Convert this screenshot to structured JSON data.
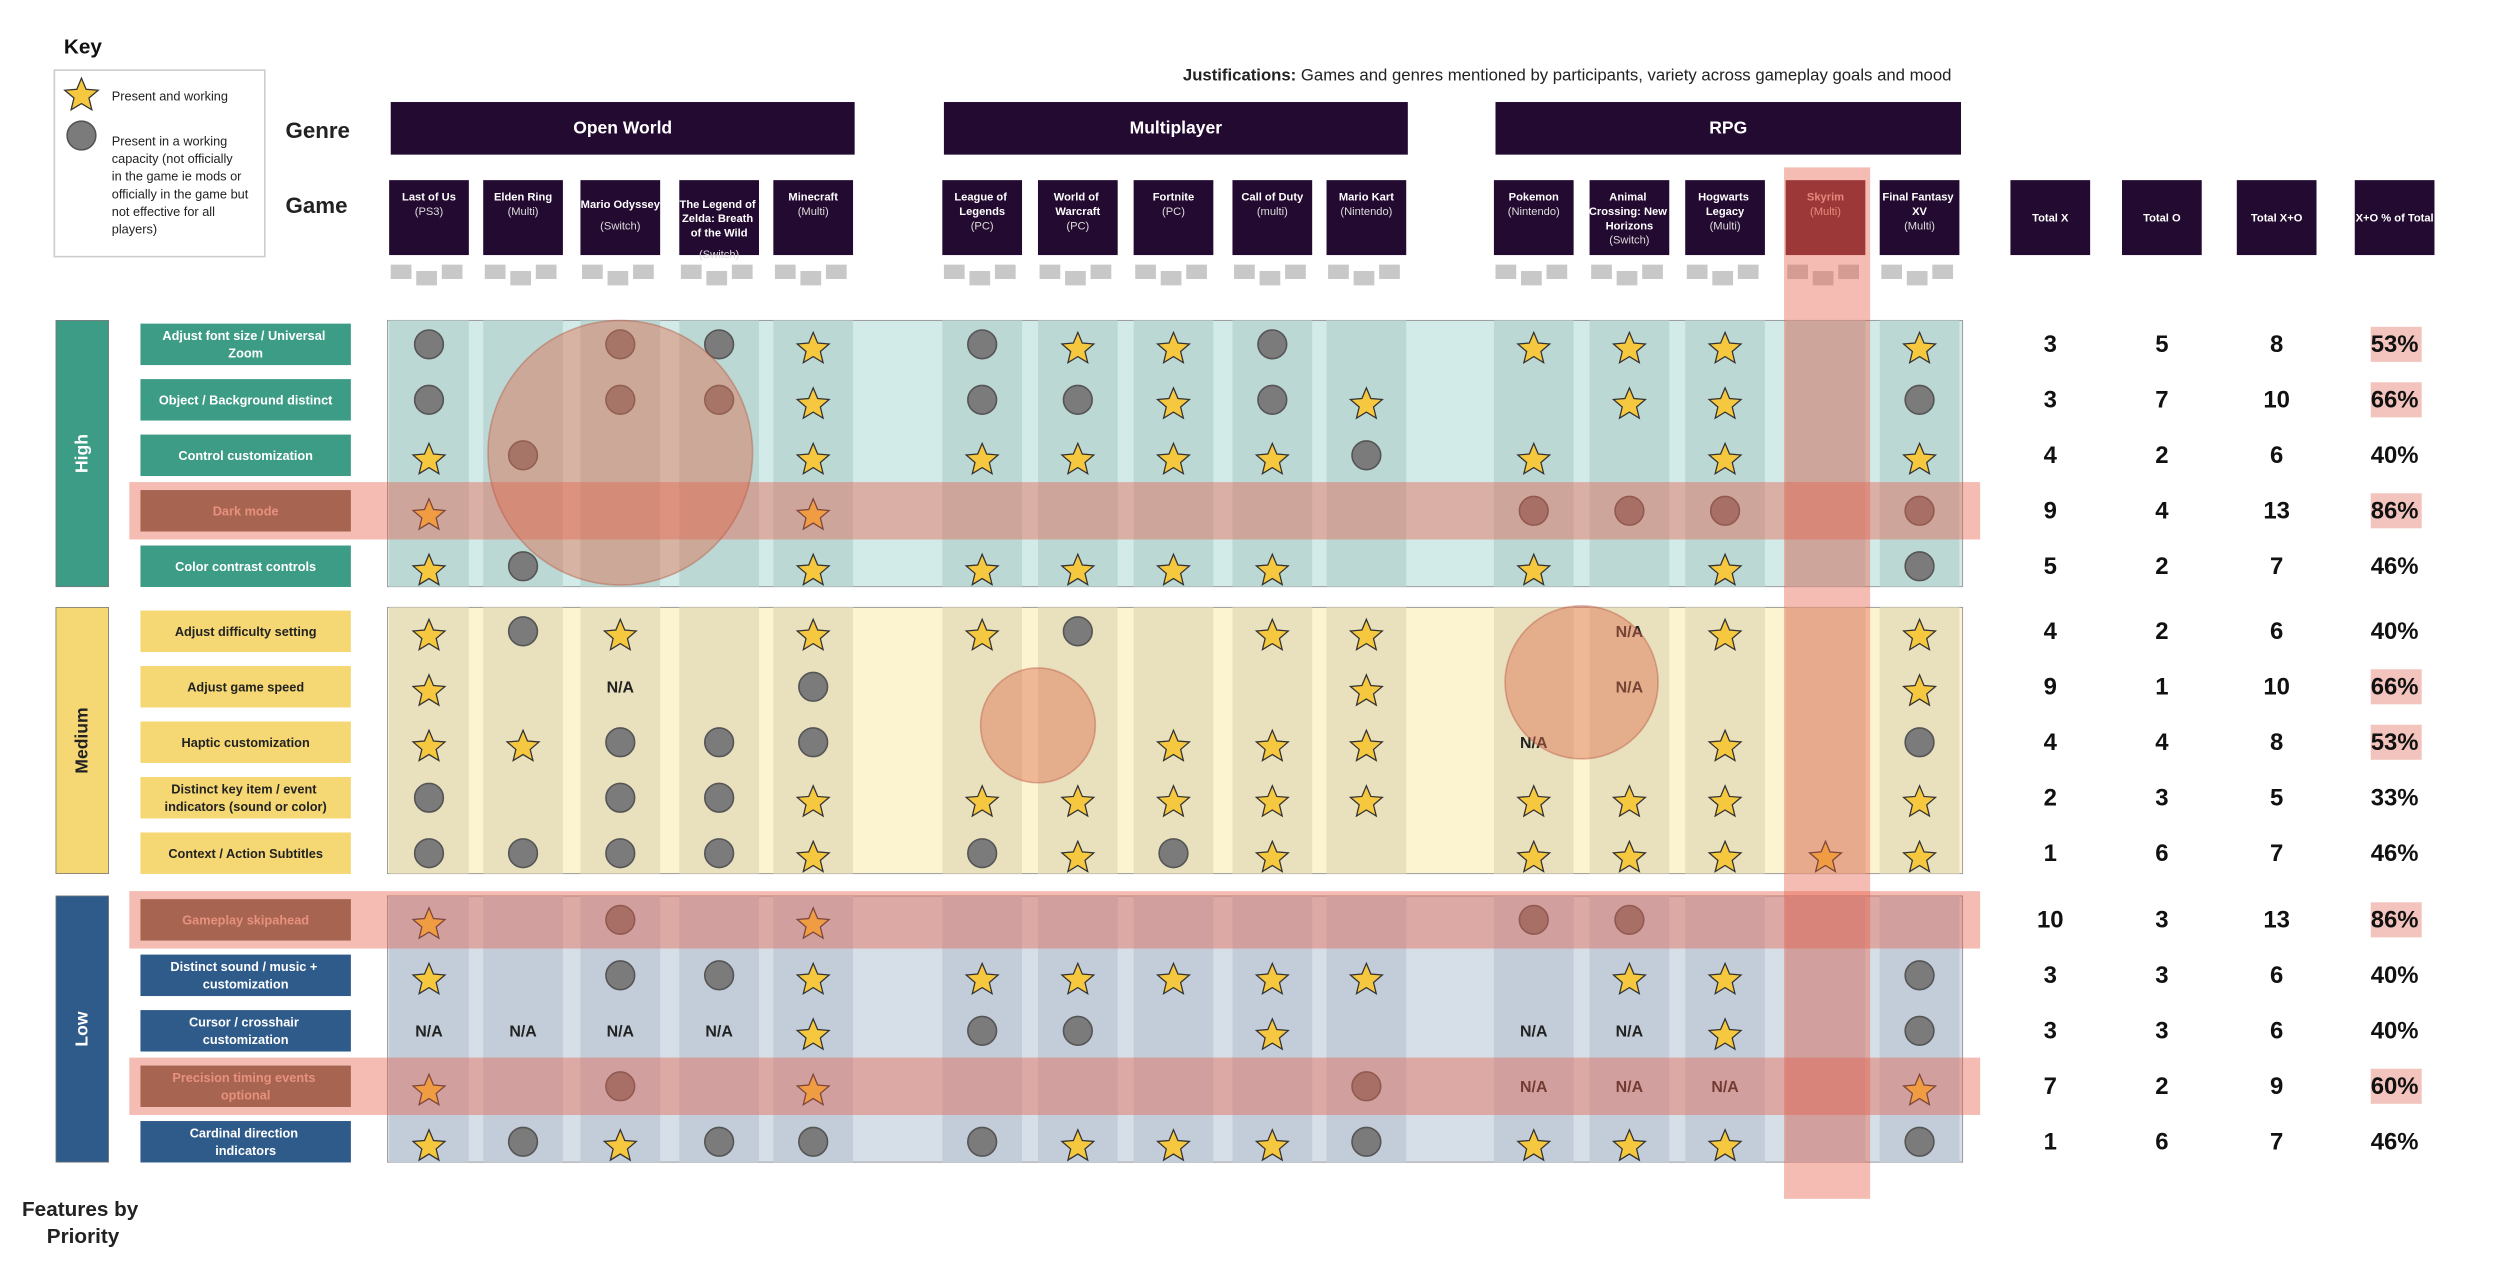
{
  "key": {
    "title": "Key",
    "star": "Present and working",
    "circle": "Present in a working capacity (not officially in the game ie mods or officially in the game but not effective for all players)"
  },
  "labels": {
    "genre": "Genre",
    "game": "Game",
    "features": "Features by Priority"
  },
  "justification": {
    "label": "Justifications:",
    "text": " Games and genres mentioned by participants, variety across gameplay goals and mood"
  },
  "genres": [
    {
      "name": "Open World",
      "games": [
        {
          "name": "Last of Us",
          "platform": "(PS3)"
        },
        {
          "name": "Elden Ring",
          "platform": "(Multi)"
        },
        {
          "name": "Mario Odyssey",
          "platform": "(Switch)"
        },
        {
          "name": "The Legend of Zelda: Breath of the Wild",
          "platform": "(Switch)"
        },
        {
          "name": "Minecraft",
          "platform": "(Multi)"
        }
      ]
    },
    {
      "name": "Multiplayer",
      "games": [
        {
          "name": "League of Legends",
          "platform": "(PC)"
        },
        {
          "name": "World of Warcraft",
          "platform": "(PC)"
        },
        {
          "name": "Fortnite",
          "platform": "(PC)"
        },
        {
          "name": "Call of Duty",
          "platform": "(multi)"
        },
        {
          "name": "Mario Kart",
          "platform": "(Nintendo)"
        }
      ]
    },
    {
      "name": "RPG",
      "games": [
        {
          "name": "Pokemon",
          "platform": "(Nintendo)"
        },
        {
          "name": "Animal Crossing: New Horizons",
          "platform": "(Switch)"
        },
        {
          "name": "Hogwarts Legacy",
          "platform": "(Multi)"
        },
        {
          "name": "Skyrim",
          "platform": "(Multi)",
          "highlight": true
        },
        {
          "name": "Final Fantasy XV",
          "platform": "(Multi)"
        }
      ]
    }
  ],
  "totals_headers": [
    "Total X",
    "Total O",
    "Total X+O",
    "X+O % of Total"
  ],
  "groups": [
    {
      "name": "High",
      "color": "#3d9c86",
      "band": "#d2ebe8",
      "stripe": "#bcd8d4",
      "text": "#ffffff",
      "rows": [
        {
          "feature": "Adjust font size / Universal Zoom",
          "cells": [
            "O",
            null,
            "O",
            "O",
            "X",
            "O",
            "X",
            "X",
            "O",
            null,
            "X",
            "X",
            "X",
            null,
            "X"
          ],
          "totals": [
            "3",
            "5",
            "8",
            "53%"
          ],
          "pct_highlight": true
        },
        {
          "feature": "Object / Background distinct",
          "cells": [
            "O",
            null,
            "O",
            "O",
            "X",
            "O",
            "O",
            "X",
            "O",
            "X",
            null,
            "X",
            "X",
            null,
            "O"
          ],
          "totals": [
            "3",
            "7",
            "10",
            "66%"
          ],
          "pct_highlight": true
        },
        {
          "feature": "Control customization",
          "cells": [
            "X",
            "O",
            null,
            null,
            "X",
            "X",
            "X",
            "X",
            "X",
            "O",
            "X",
            null,
            "X",
            null,
            "X"
          ],
          "totals": [
            "4",
            "2",
            "6",
            "40%"
          ]
        },
        {
          "feature": "Dark mode",
          "cells": [
            "X",
            null,
            null,
            null,
            "X",
            null,
            null,
            null,
            null,
            null,
            "O",
            "O",
            "O",
            null,
            "O"
          ],
          "totals": [
            "9",
            "4",
            "13",
            "86%"
          ],
          "highlight": true,
          "pct_highlight": true
        },
        {
          "feature": "Color contrast controls",
          "cells": [
            "X",
            "O",
            null,
            null,
            "X",
            "X",
            "X",
            "X",
            "X",
            null,
            "X",
            null,
            "X",
            null,
            "O"
          ],
          "totals": [
            "5",
            "2",
            "7",
            "46%"
          ]
        }
      ]
    },
    {
      "name": "Medium",
      "color": "#f5d873",
      "band": "#fcf4d0",
      "stripe": "#e9e0bd",
      "text": "#222222",
      "rows": [
        {
          "feature": "Adjust difficulty setting",
          "cells": [
            "X",
            "O",
            "X",
            null,
            "X",
            "X",
            "O",
            null,
            "X",
            "X",
            null,
            "N/A",
            "X",
            null,
            "X"
          ],
          "totals": [
            "4",
            "2",
            "6",
            "40%"
          ]
        },
        {
          "feature": "Adjust game speed",
          "cells": [
            "X",
            null,
            "N/A",
            null,
            "O",
            null,
            null,
            null,
            null,
            "X",
            null,
            "N/A",
            null,
            null,
            "X"
          ],
          "totals": [
            "9",
            "1",
            "10",
            "66%"
          ],
          "pct_highlight": true
        },
        {
          "feature": "Haptic customization",
          "cells": [
            "X",
            "X",
            "O",
            "O",
            "O",
            null,
            null,
            "X",
            "X",
            "X",
            "N/A",
            null,
            "X",
            null,
            "O"
          ],
          "totals": [
            "4",
            "4",
            "8",
            "53%"
          ],
          "pct_highlight": true
        },
        {
          "feature": "Distinct key item / event indicators (sound or color)",
          "cells": [
            "O",
            null,
            "O",
            "O",
            "X",
            "X",
            "X",
            "X",
            "X",
            "X",
            "X",
            "X",
            "X",
            null,
            "X"
          ],
          "totals": [
            "2",
            "3",
            "5",
            "33%"
          ]
        },
        {
          "feature": "Context / Action Subtitles",
          "cells": [
            "O",
            "O",
            "O",
            "O",
            "X",
            "O",
            "X",
            "O",
            "X",
            null,
            "X",
            "X",
            "X",
            "X",
            "X"
          ],
          "totals": [
            "1",
            "6",
            "7",
            "46%"
          ]
        }
      ]
    },
    {
      "name": "Low",
      "color": "#2f5b8b",
      "band": "#d6dee7",
      "stripe": "#c3cdd9",
      "text": "#ffffff",
      "rows": [
        {
          "feature": "Gameplay skipahead",
          "cells": [
            "X",
            null,
            "O",
            null,
            "X",
            null,
            null,
            null,
            null,
            null,
            "O",
            "O",
            null,
            null,
            null
          ],
          "totals": [
            "10",
            "3",
            "13",
            "86%"
          ],
          "highlight": true,
          "pct_highlight": true
        },
        {
          "feature": "Distinct sound / music + customization",
          "cells": [
            "X",
            null,
            "O",
            "O",
            "X",
            "X",
            "X",
            "X",
            "X",
            "X",
            null,
            "X",
            "X",
            null,
            "O"
          ],
          "totals": [
            "3",
            "3",
            "6",
            "40%"
          ]
        },
        {
          "feature": "Cursor / crosshair customization",
          "cells": [
            "N/A",
            "N/A",
            "N/A",
            "N/A",
            "X",
            "O",
            "O",
            null,
            "X",
            null,
            "N/A",
            "N/A",
            "X",
            null,
            "O"
          ],
          "totals": [
            "3",
            "3",
            "6",
            "40%"
          ]
        },
        {
          "feature": "Precision timing events optional",
          "cells": [
            "X",
            null,
            "O",
            null,
            "X",
            null,
            null,
            null,
            null,
            "O",
            "N/A",
            "N/A",
            "N/A",
            null,
            "X"
          ],
          "totals": [
            "7",
            "2",
            "9",
            "60%"
          ],
          "highlight": true,
          "pct_highlight": true
        },
        {
          "feature": "Cardinal direction indicators",
          "cells": [
            "X",
            "O",
            "X",
            "O",
            "O",
            "O",
            "X",
            "X",
            "X",
            "O",
            "X",
            "X",
            "X",
            null,
            "O"
          ],
          "totals": [
            "1",
            "6",
            "7",
            "46%"
          ]
        }
      ]
    }
  ]
}
